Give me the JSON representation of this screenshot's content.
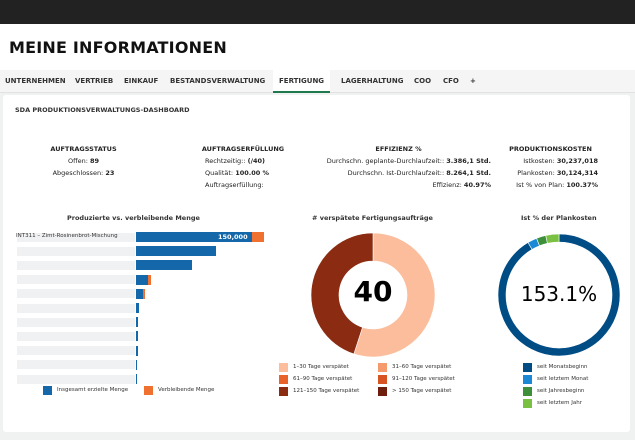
{
  "header": {
    "title": "MEINE INFORMATIONEN"
  },
  "tabs": [
    {
      "label": "UNTERNEHMEN"
    },
    {
      "label": "VERTRIEB"
    },
    {
      "label": "EINKAUF"
    },
    {
      "label": "BESTANDSVERWALTUNG"
    },
    {
      "label": "FERTIGUNG",
      "active": true
    },
    {
      "label": "LAGERHALTUNG"
    },
    {
      "label": "COO"
    },
    {
      "label": "CFO"
    },
    {
      "label": "+"
    }
  ],
  "dashboard": {
    "title": "SDA PRODUKTIONSVERWALTUNGS-DASHBOARD"
  },
  "kpis": {
    "auftragsstatus": {
      "title": "AUFTRAGSSTATUS",
      "offen_label": "Offen:",
      "offen_value": "89",
      "abgeschlossen_label": "Abgeschlossen:",
      "abgeschlossen_value": "23"
    },
    "auftragserfuellung": {
      "title": "AUFTRAGSERFÜLLUNG",
      "rechtzeitig_label": "Rechtzeitig::",
      "rechtzeitig_value": "(/40)",
      "qualitaet_label": "Qualität:",
      "qualitaet_value": "100.00 %",
      "erfuellung_label": "Auftragserfüllung:",
      "erfuellung_value": ""
    },
    "effizienz": {
      "title": "EFFIZIENZ %",
      "geplant_label": "Durchschn. geplante-Durchlaufzeit::",
      "geplant_value": "3.386,1 Std.",
      "ist_label": "Durchschn. Ist-Durchlaufzeit::",
      "ist_value": "8.264,1 Std.",
      "effizienz_label": "Effizienz:",
      "effizienz_value": "40.97%"
    },
    "produktionskosten": {
      "title": "PRODUKTIONSKOSTEN",
      "istkosten_label": "Istkosten:",
      "istkosten_value": "30,237,018",
      "plankosten_label": "Plankosten:",
      "plankosten_value": "30,124,314",
      "istvonplan_label": "Ist % von Plan:",
      "istvonplan_value": "100.37%"
    }
  },
  "chart_data": [
    {
      "type": "bar",
      "orientation": "horizontal",
      "stacked": true,
      "title": "Produzierte vs. verbleibende Menge",
      "categories": [
        "INT311 – Zimt-Rosinenbrot-Mischung",
        "",
        "",
        "",
        "",
        "",
        "",
        "",
        "",
        "",
        ""
      ],
      "series": [
        {
          "name": "Insgesamt erzielte Menge",
          "color": "#1467a8",
          "values": [
            150000,
            103000,
            73000,
            16000,
            9000,
            4000,
            3000,
            2500,
            2000,
            1500,
            1000
          ]
        },
        {
          "name": "Verbleibende Menge",
          "color": "#f07030",
          "values": [
            16000,
            0,
            0,
            3000,
            3000,
            0,
            0,
            0,
            0,
            0,
            0
          ]
        }
      ],
      "data_labels": [
        "150,000"
      ],
      "legend": "bottom"
    },
    {
      "type": "pie",
      "donut": true,
      "title": "# verspätete Fertigungsaufträge",
      "center_label": "40",
      "slices": [
        {
          "name": "1–30 Tage verspätet",
          "value": 55,
          "color": "#fbbd9b"
        },
        {
          "name": "31–60 Tage verspätet",
          "value": 0,
          "color": "#f59a6c"
        },
        {
          "name": "61–90 Tage verspätet",
          "value": 0,
          "color": "#e9622a"
        },
        {
          "name": "91–120 Tage verspätet",
          "value": 0,
          "color": "#d75422"
        },
        {
          "name": "121–150 Tage verspätet",
          "value": 45,
          "color": "#8a2b12"
        },
        {
          "name": "> 150 Tage verspätet",
          "value": 0,
          "color": "#6d1e0c"
        }
      ],
      "legend": "bottom"
    },
    {
      "type": "pie",
      "donut": true,
      "title": "Ist % der Plankosten",
      "center_label": "153.1%",
      "slices": [
        {
          "name": "seit Monatsbeginn",
          "value": 91.5,
          "color": "#004c84"
        },
        {
          "name": "seit letztem Monat",
          "value": 2.5,
          "color": "#1b88d6"
        },
        {
          "name": "seit Jahresbeginn",
          "value": 2.5,
          "color": "#3e8f3a"
        },
        {
          "name": "seit letztem Jahr",
          "value": 3.5,
          "color": "#7ac143"
        }
      ],
      "legend": "bottom"
    }
  ]
}
